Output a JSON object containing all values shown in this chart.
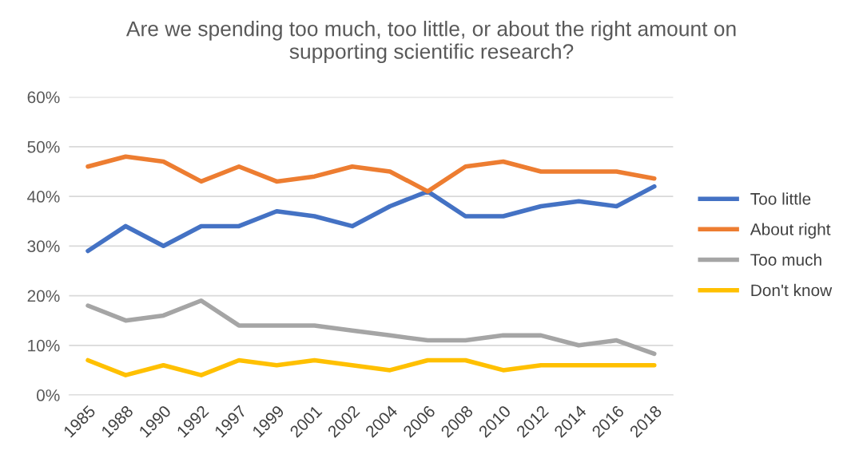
{
  "chart_data": {
    "type": "line",
    "title": "Are we spending too much, too little, or about the right amount on\nsupporting scientific research?",
    "categories": [
      "1985",
      "1988",
      "1990",
      "1992",
      "1997",
      "1999",
      "2001",
      "2002",
      "2004",
      "2006",
      "2008",
      "2010",
      "2012",
      "2014",
      "2016",
      "2018"
    ],
    "series": [
      {
        "name": "Too little",
        "color": "#4472c4",
        "values": [
          29,
          34,
          30,
          34,
          34,
          37,
          36,
          34,
          38,
          41,
          36,
          36,
          38,
          39,
          38,
          42
        ]
      },
      {
        "name": "About right",
        "color": "#ed7d31",
        "values": [
          46,
          48,
          47,
          43,
          46,
          43,
          44,
          46,
          45,
          41,
          46,
          47,
          45,
          45,
          45,
          43.6
        ]
      },
      {
        "name": "Too much",
        "color": "#a5a5a5",
        "values": [
          18,
          15,
          16,
          19,
          14,
          14,
          14,
          13,
          12,
          11,
          11,
          12,
          12,
          10,
          11,
          8.3
        ]
      },
      {
        "name": "Don't know",
        "color": "#ffc000",
        "values": [
          7,
          4,
          6,
          4,
          7,
          6,
          7,
          6,
          5,
          7,
          7,
          5,
          6,
          6,
          6,
          6
        ]
      }
    ],
    "ylim": [
      0,
      60
    ],
    "yticks": [
      {
        "value": 0,
        "label": "0%"
      },
      {
        "value": 10,
        "label": "10%"
      },
      {
        "value": 20,
        "label": "20%"
      },
      {
        "value": 30,
        "label": "30%"
      },
      {
        "value": 40,
        "label": "40%"
      },
      {
        "value": 50,
        "label": "50%"
      },
      {
        "value": 60,
        "label": "60%"
      }
    ],
    "grid": "y",
    "legend": "right",
    "marker": "none",
    "line_style": "solid"
  }
}
